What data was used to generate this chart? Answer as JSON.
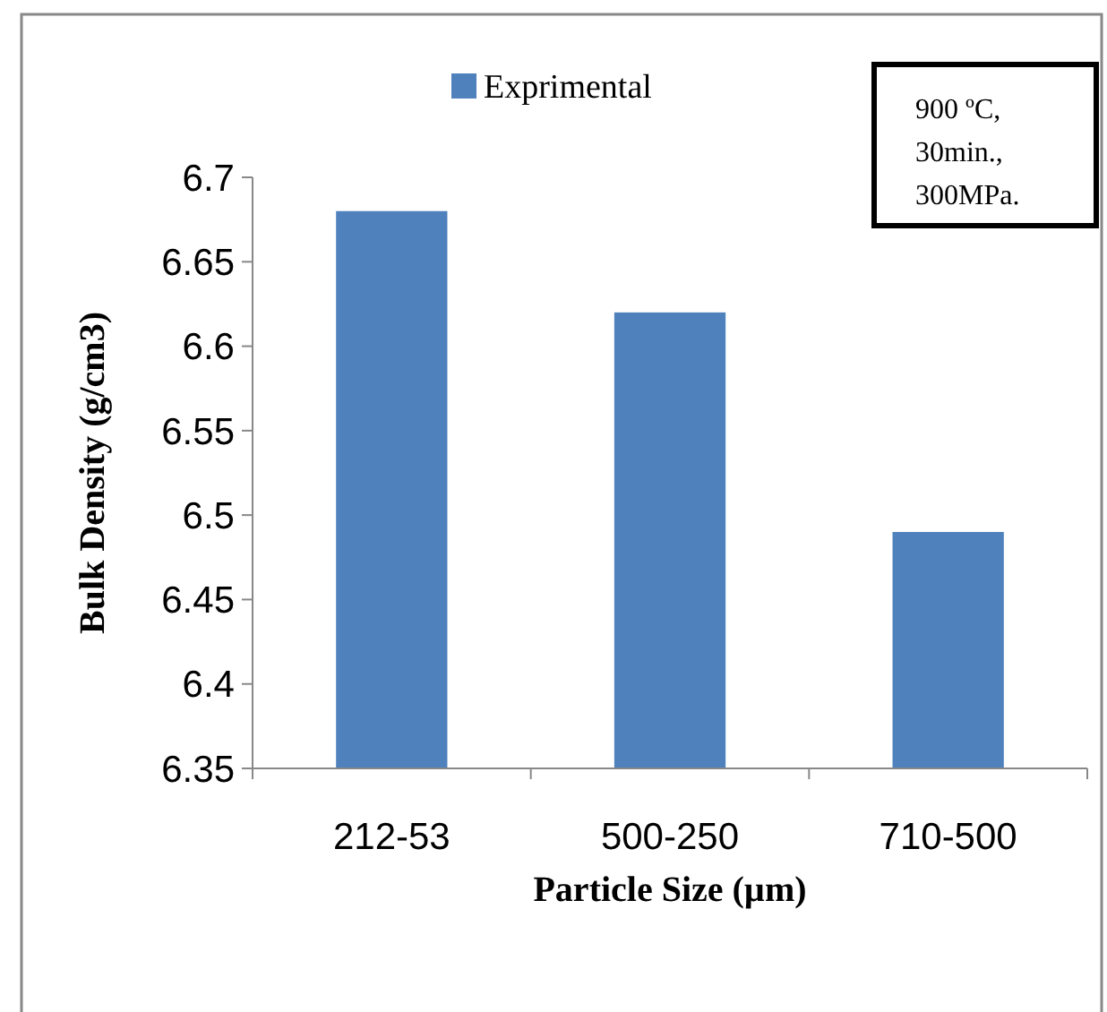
{
  "chart_data": {
    "type": "bar",
    "xlabel": "Particle Size (µm)",
    "ylabel": "Bulk Density (g/cm3)",
    "categories": [
      "212-53",
      "500-250",
      "710-500"
    ],
    "series": [
      {
        "name": "Exprimental",
        "color": "#4f81bd",
        "values": [
          6.68,
          6.62,
          6.49
        ]
      }
    ],
    "ylim": [
      6.35,
      6.7
    ],
    "yticks": [
      6.35,
      6.4,
      6.45,
      6.5,
      6.55,
      6.6,
      6.65,
      6.7
    ],
    "legend": "top",
    "grid": false,
    "annotations": [
      "900 ºC,\n30min.,\n300MPa."
    ]
  }
}
